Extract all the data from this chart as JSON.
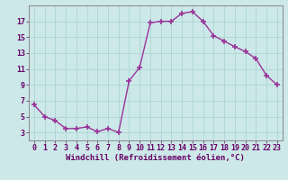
{
  "x": [
    0,
    1,
    2,
    3,
    4,
    5,
    6,
    7,
    8,
    9,
    10,
    11,
    12,
    13,
    14,
    15,
    16,
    17,
    18,
    19,
    20,
    21,
    22,
    23
  ],
  "y": [
    6.5,
    5.0,
    4.5,
    3.5,
    3.5,
    3.7,
    3.1,
    3.5,
    3.0,
    9.5,
    11.2,
    16.8,
    17.0,
    17.0,
    18.0,
    18.2,
    17.0,
    15.2,
    14.5,
    13.8,
    13.2,
    12.3,
    10.2,
    9.0
  ],
  "line_color": "#993399",
  "marker": "+",
  "markersize": 4,
  "markeredgewidth": 1.2,
  "linewidth": 1.0,
  "bg_color": "#cce8e8",
  "grid_color": "#b0d8d8",
  "xlabel": "Windchill (Refroidissement éolien,°C)",
  "xlabel_fontsize": 6.5,
  "tick_fontsize": 6.0,
  "xlim": [
    -0.5,
    23.5
  ],
  "ylim": [
    2.0,
    19.0
  ],
  "yticks": [
    3,
    5,
    7,
    9,
    11,
    13,
    15,
    17
  ],
  "xticks": [
    0,
    1,
    2,
    3,
    4,
    5,
    6,
    7,
    8,
    9,
    10,
    11,
    12,
    13,
    14,
    15,
    16,
    17,
    18,
    19,
    20,
    21,
    22,
    23
  ],
  "spine_color": "#888888",
  "text_color": "#660066"
}
